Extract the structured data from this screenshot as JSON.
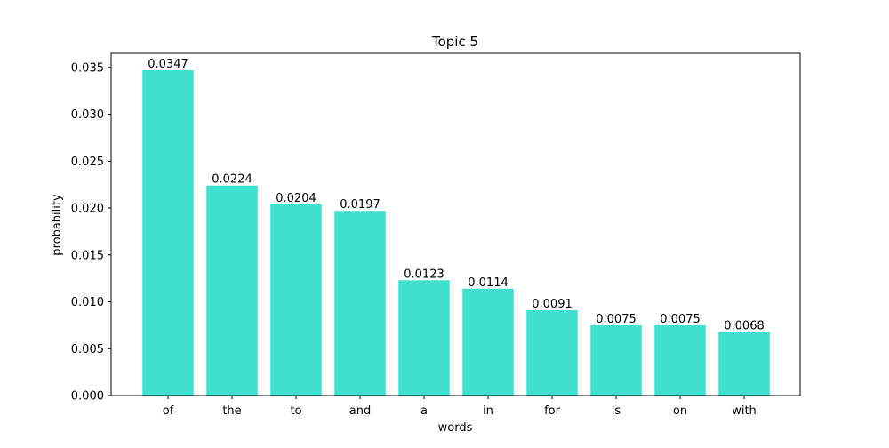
{
  "chart_data": {
    "type": "bar",
    "title": "Topic 5",
    "xlabel": "words",
    "ylabel": "probability",
    "categories": [
      "of",
      "the",
      "to",
      "and",
      "a",
      "in",
      "for",
      "is",
      "on",
      "with"
    ],
    "values": [
      0.0347,
      0.0224,
      0.0204,
      0.0197,
      0.0123,
      0.0114,
      0.0091,
      0.0075,
      0.0075,
      0.0068
    ],
    "data_labels": [
      "0.0347",
      "0.0224",
      "0.0204",
      "0.0197",
      "0.0123",
      "0.0114",
      "0.0091",
      "0.0075",
      "0.0075",
      "0.0068"
    ],
    "ylim": [
      0,
      0.0365
    ],
    "yticks": [
      0,
      0.005,
      0.01,
      0.015,
      0.02,
      0.025,
      0.03,
      0.035
    ],
    "ytick_labels": [
      "0.000",
      "0.005",
      "0.010",
      "0.015",
      "0.020",
      "0.025",
      "0.030",
      "0.035"
    ],
    "grid": false,
    "legend": "none",
    "bar_color": "#40E0D0"
  }
}
